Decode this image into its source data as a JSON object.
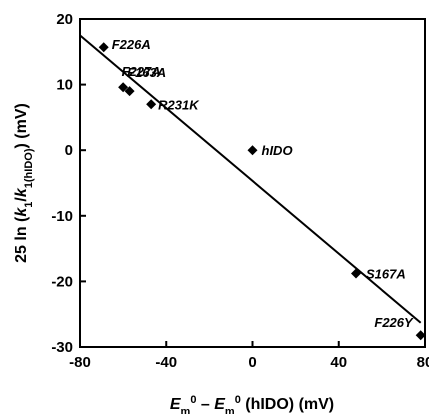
{
  "chart_data": {
    "type": "scatter",
    "title": "",
    "xlabel": {
      "parts": [
        {
          "text": "E",
          "italic": true
        },
        {
          "text": "m",
          "sub": true
        },
        {
          "text": "0",
          "sup": true
        },
        {
          "text": " – "
        },
        {
          "text": "E",
          "italic": true
        },
        {
          "text": "m",
          "sub": true
        },
        {
          "text": "0",
          "sup": true
        },
        {
          "text": " (hIDO) (mV)"
        }
      ]
    },
    "ylabel": {
      "parts": [
        {
          "text": "25 ln ("
        },
        {
          "text": "k",
          "italic": true
        },
        {
          "text": "1",
          "sub": true
        },
        {
          "text": "/"
        },
        {
          "text": "k",
          "italic": true
        },
        {
          "text": "1(hIDO)",
          "sub": true
        },
        {
          "text": ") (mV)"
        }
      ]
    },
    "xlim": [
      -80,
      80
    ],
    "ylim": [
      -30,
      20
    ],
    "xticks": [
      -80,
      -40,
      0,
      40,
      80
    ],
    "yticks": [
      20,
      10,
      0,
      -10,
      -20,
      -30
    ],
    "grid": false,
    "legend": "none",
    "points": [
      {
        "x": -69,
        "y": 15.7,
        "label": "F226A"
      },
      {
        "x": -60,
        "y": 9.6,
        "label": "F163A"
      },
      {
        "x": -57,
        "y": 9.0,
        "label": "F227A"
      },
      {
        "x": -47,
        "y": 7.0,
        "label": "R231K"
      },
      {
        "x": 0,
        "y": 0.0,
        "label": "hIDO"
      },
      {
        "x": 48,
        "y": -18.8,
        "label": "S167A"
      },
      {
        "x": 78,
        "y": -28.2,
        "label": "F226Y"
      }
    ],
    "fit_line": {
      "x": [
        -80,
        78
      ],
      "y": [
        17.5,
        -26.3
      ]
    },
    "marker": "diamond",
    "colors": {
      "marker": "#000000",
      "line": "#000000",
      "axes": "#000000"
    }
  }
}
